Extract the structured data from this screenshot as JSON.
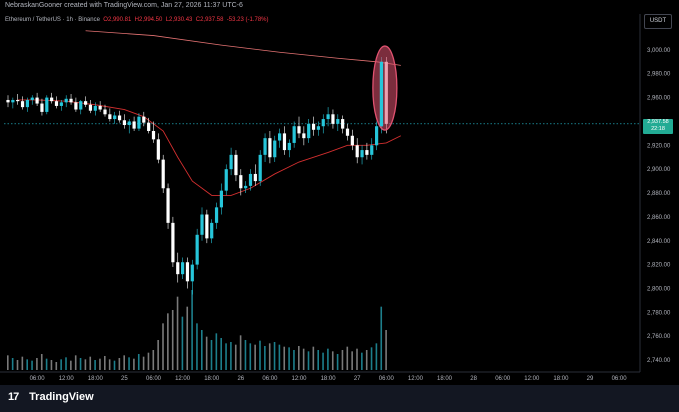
{
  "header": {
    "credit": "NebraskanGooner created with TradingView.com, Jan 27, 2026 11:37 UTC-6",
    "symbol": "Ethereum / TetherUS · 1h · Binance",
    "open": "O2,990.81",
    "high": "H2,994.50",
    "low": "L2,930.43",
    "close": "C2,937.58",
    "change": "-53.23 (-1.78%)",
    "currency": "USDT"
  },
  "price_tag": {
    "price": "2,937.58",
    "countdown": "22:18"
  },
  "footer": {
    "brand": "TradingView",
    "brand_mark": "17"
  },
  "colors": {
    "up": "#26c6da",
    "down": "#ffffff",
    "ma_red": "#d32f2f",
    "ma_green": "#1b5e20",
    "highlight": "#e05270",
    "background": "#000000"
  },
  "chart_data": {
    "type": "candlestick",
    "ylim": [
      2730,
      3020
    ],
    "y_ticks": [
      "3,000.00",
      "2,980.00",
      "2,960.00",
      "2,940.00",
      "2,920.00",
      "2,900.00",
      "2,880.00",
      "2,860.00",
      "2,840.00",
      "2,820.00",
      "2,800.00",
      "2,780.00",
      "2,760.00",
      "2,740.00"
    ],
    "y_tick_values": [
      3000,
      2980,
      2960,
      2940,
      2920,
      2900,
      2880,
      2860,
      2840,
      2820,
      2800,
      2780,
      2760,
      2740
    ],
    "x_ticks": [
      "06:00",
      "12:00",
      "18:00",
      "25",
      "06:00",
      "12:00",
      "18:00",
      "26",
      "06:00",
      "12:00",
      "18:00",
      "27",
      "06:00",
      "12:00",
      "18:00",
      "28",
      "06:00",
      "12:00",
      "18:00",
      "29",
      "06:00"
    ],
    "x_tick_hours": [
      6,
      12,
      18,
      24,
      30,
      36,
      42,
      48,
      54,
      60,
      66,
      72,
      78,
      84,
      90,
      96,
      102,
      108,
      114,
      120,
      126
    ],
    "candles": [
      [
        2958,
        2962,
        2952,
        2956
      ],
      [
        2956,
        2960,
        2951,
        2958
      ],
      [
        2958,
        2963,
        2954,
        2957
      ],
      [
        2957,
        2961,
        2950,
        2952
      ],
      [
        2952,
        2960,
        2948,
        2958
      ],
      [
        2958,
        2962,
        2954,
        2960
      ],
      [
        2960,
        2964,
        2953,
        2955
      ],
      [
        2955,
        2959,
        2945,
        2948
      ],
      [
        2948,
        2962,
        2946,
        2960
      ],
      [
        2960,
        2964,
        2955,
        2957
      ],
      [
        2957,
        2961,
        2951,
        2953
      ],
      [
        2953,
        2958,
        2949,
        2956
      ],
      [
        2956,
        2962,
        2952,
        2959
      ],
      [
        2959,
        2963,
        2954,
        2956
      ],
      [
        2956,
        2960,
        2948,
        2950
      ],
      [
        2950,
        2958,
        2946,
        2957
      ],
      [
        2957,
        2961,
        2952,
        2954
      ],
      [
        2954,
        2958,
        2947,
        2949
      ],
      [
        2949,
        2956,
        2945,
        2953
      ],
      [
        2953,
        2957,
        2948,
        2950
      ],
      [
        2950,
        2954,
        2944,
        2946
      ],
      [
        2946,
        2951,
        2940,
        2942
      ],
      [
        2942,
        2948,
        2938,
        2945
      ],
      [
        2945,
        2949,
        2939,
        2941
      ],
      [
        2941,
        2946,
        2934,
        2937
      ],
      [
        2937,
        2942,
        2930,
        2940
      ],
      [
        2940,
        2944,
        2932,
        2934
      ],
      [
        2934,
        2947,
        2932,
        2944
      ],
      [
        2944,
        2948,
        2936,
        2939
      ],
      [
        2939,
        2943,
        2930,
        2932
      ],
      [
        2932,
        2940,
        2922,
        2925
      ],
      [
        2925,
        2930,
        2905,
        2908
      ],
      [
        2908,
        2912,
        2880,
        2884
      ],
      [
        2884,
        2888,
        2850,
        2855
      ],
      [
        2855,
        2860,
        2818,
        2822
      ],
      [
        2822,
        2830,
        2805,
        2812
      ],
      [
        2812,
        2826,
        2808,
        2822
      ],
      [
        2822,
        2826,
        2800,
        2806
      ],
      [
        2806,
        2824,
        2795,
        2820
      ],
      [
        2820,
        2850,
        2816,
        2845
      ],
      [
        2845,
        2868,
        2840,
        2862
      ],
      [
        2862,
        2866,
        2838,
        2842
      ],
      [
        2842,
        2858,
        2838,
        2855
      ],
      [
        2855,
        2872,
        2850,
        2868
      ],
      [
        2868,
        2888,
        2862,
        2882
      ],
      [
        2882,
        2904,
        2878,
        2900
      ],
      [
        2900,
        2918,
        2895,
        2912
      ],
      [
        2912,
        2916,
        2890,
        2895
      ],
      [
        2895,
        2900,
        2878,
        2884
      ],
      [
        2884,
        2890,
        2880,
        2886
      ],
      [
        2886,
        2900,
        2882,
        2896
      ],
      [
        2896,
        2904,
        2886,
        2890
      ],
      [
        2890,
        2916,
        2886,
        2912
      ],
      [
        2912,
        2930,
        2906,
        2926
      ],
      [
        2926,
        2932,
        2905,
        2910
      ],
      [
        2910,
        2928,
        2906,
        2924
      ],
      [
        2924,
        2934,
        2918,
        2930
      ],
      [
        2930,
        2936,
        2912,
        2916
      ],
      [
        2916,
        2925,
        2910,
        2922
      ],
      [
        2922,
        2940,
        2918,
        2936
      ],
      [
        2936,
        2944,
        2926,
        2930
      ],
      [
        2930,
        2936,
        2920,
        2926
      ],
      [
        2926,
        2942,
        2922,
        2938
      ],
      [
        2938,
        2944,
        2928,
        2933
      ],
      [
        2933,
        2940,
        2928,
        2936
      ],
      [
        2936,
        2946,
        2930,
        2942
      ],
      [
        2942,
        2952,
        2936,
        2946
      ],
      [
        2946,
        2950,
        2934,
        2938
      ],
      [
        2938,
        2946,
        2932,
        2942
      ],
      [
        2942,
        2945,
        2930,
        2934
      ],
      [
        2934,
        2938,
        2924,
        2928
      ],
      [
        2928,
        2933,
        2916,
        2920
      ],
      [
        2920,
        2926,
        2905,
        2910
      ],
      [
        2910,
        2920,
        2904,
        2916
      ],
      [
        2916,
        2922,
        2908,
        2912
      ],
      [
        2912,
        2926,
        2908,
        2920
      ],
      [
        2920,
        2940,
        2916,
        2936
      ],
      [
        2936,
        2994,
        2930,
        2990
      ],
      [
        2990,
        2994,
        2930,
        2938
      ]
    ],
    "volumes": [
      22,
      18,
      15,
      20,
      16,
      14,
      18,
      24,
      17,
      15,
      12,
      16,
      19,
      14,
      22,
      18,
      16,
      20,
      15,
      17,
      21,
      16,
      14,
      18,
      22,
      19,
      17,
      24,
      20,
      26,
      30,
      45,
      70,
      85,
      90,
      110,
      80,
      95,
      120,
      70,
      60,
      50,
      45,
      55,
      48,
      40,
      42,
      38,
      52,
      45,
      40,
      38,
      44,
      36,
      40,
      42,
      38,
      35,
      34,
      30,
      36,
      32,
      28,
      35,
      30,
      26,
      32,
      28,
      24,
      30,
      35,
      28,
      32,
      26,
      30,
      34,
      40,
      95,
      60
    ],
    "moving_average": [
      {
        "hour": 2,
        "price": 2958
      },
      {
        "hour": 6,
        "price": 2958
      },
      {
        "hour": 12,
        "price": 2957
      },
      {
        "hour": 18,
        "price": 2954
      },
      {
        "hour": 24,
        "price": 2950
      },
      {
        "hour": 28,
        "price": 2944
      },
      {
        "hour": 32,
        "price": 2932
      },
      {
        "hour": 35,
        "price": 2910
      },
      {
        "hour": 38,
        "price": 2890
      },
      {
        "hour": 42,
        "price": 2878
      },
      {
        "hour": 46,
        "price": 2878
      },
      {
        "hour": 50,
        "price": 2884
      },
      {
        "hour": 55,
        "price": 2896
      },
      {
        "hour": 60,
        "price": 2906
      },
      {
        "hour": 66,
        "price": 2914
      },
      {
        "hour": 70,
        "price": 2920
      },
      {
        "hour": 74,
        "price": 2920
      },
      {
        "hour": 78,
        "price": 2922
      },
      {
        "hour": 81,
        "price": 2928
      }
    ],
    "long_ma": [
      {
        "hour": 16,
        "price": 3016
      },
      {
        "hour": 30,
        "price": 3012
      },
      {
        "hour": 44,
        "price": 3004
      },
      {
        "hour": 56,
        "price": 2998
      },
      {
        "hour": 68,
        "price": 2993
      },
      {
        "hour": 76,
        "price": 2990
      },
      {
        "hour": 81,
        "price": 2987
      }
    ]
  }
}
